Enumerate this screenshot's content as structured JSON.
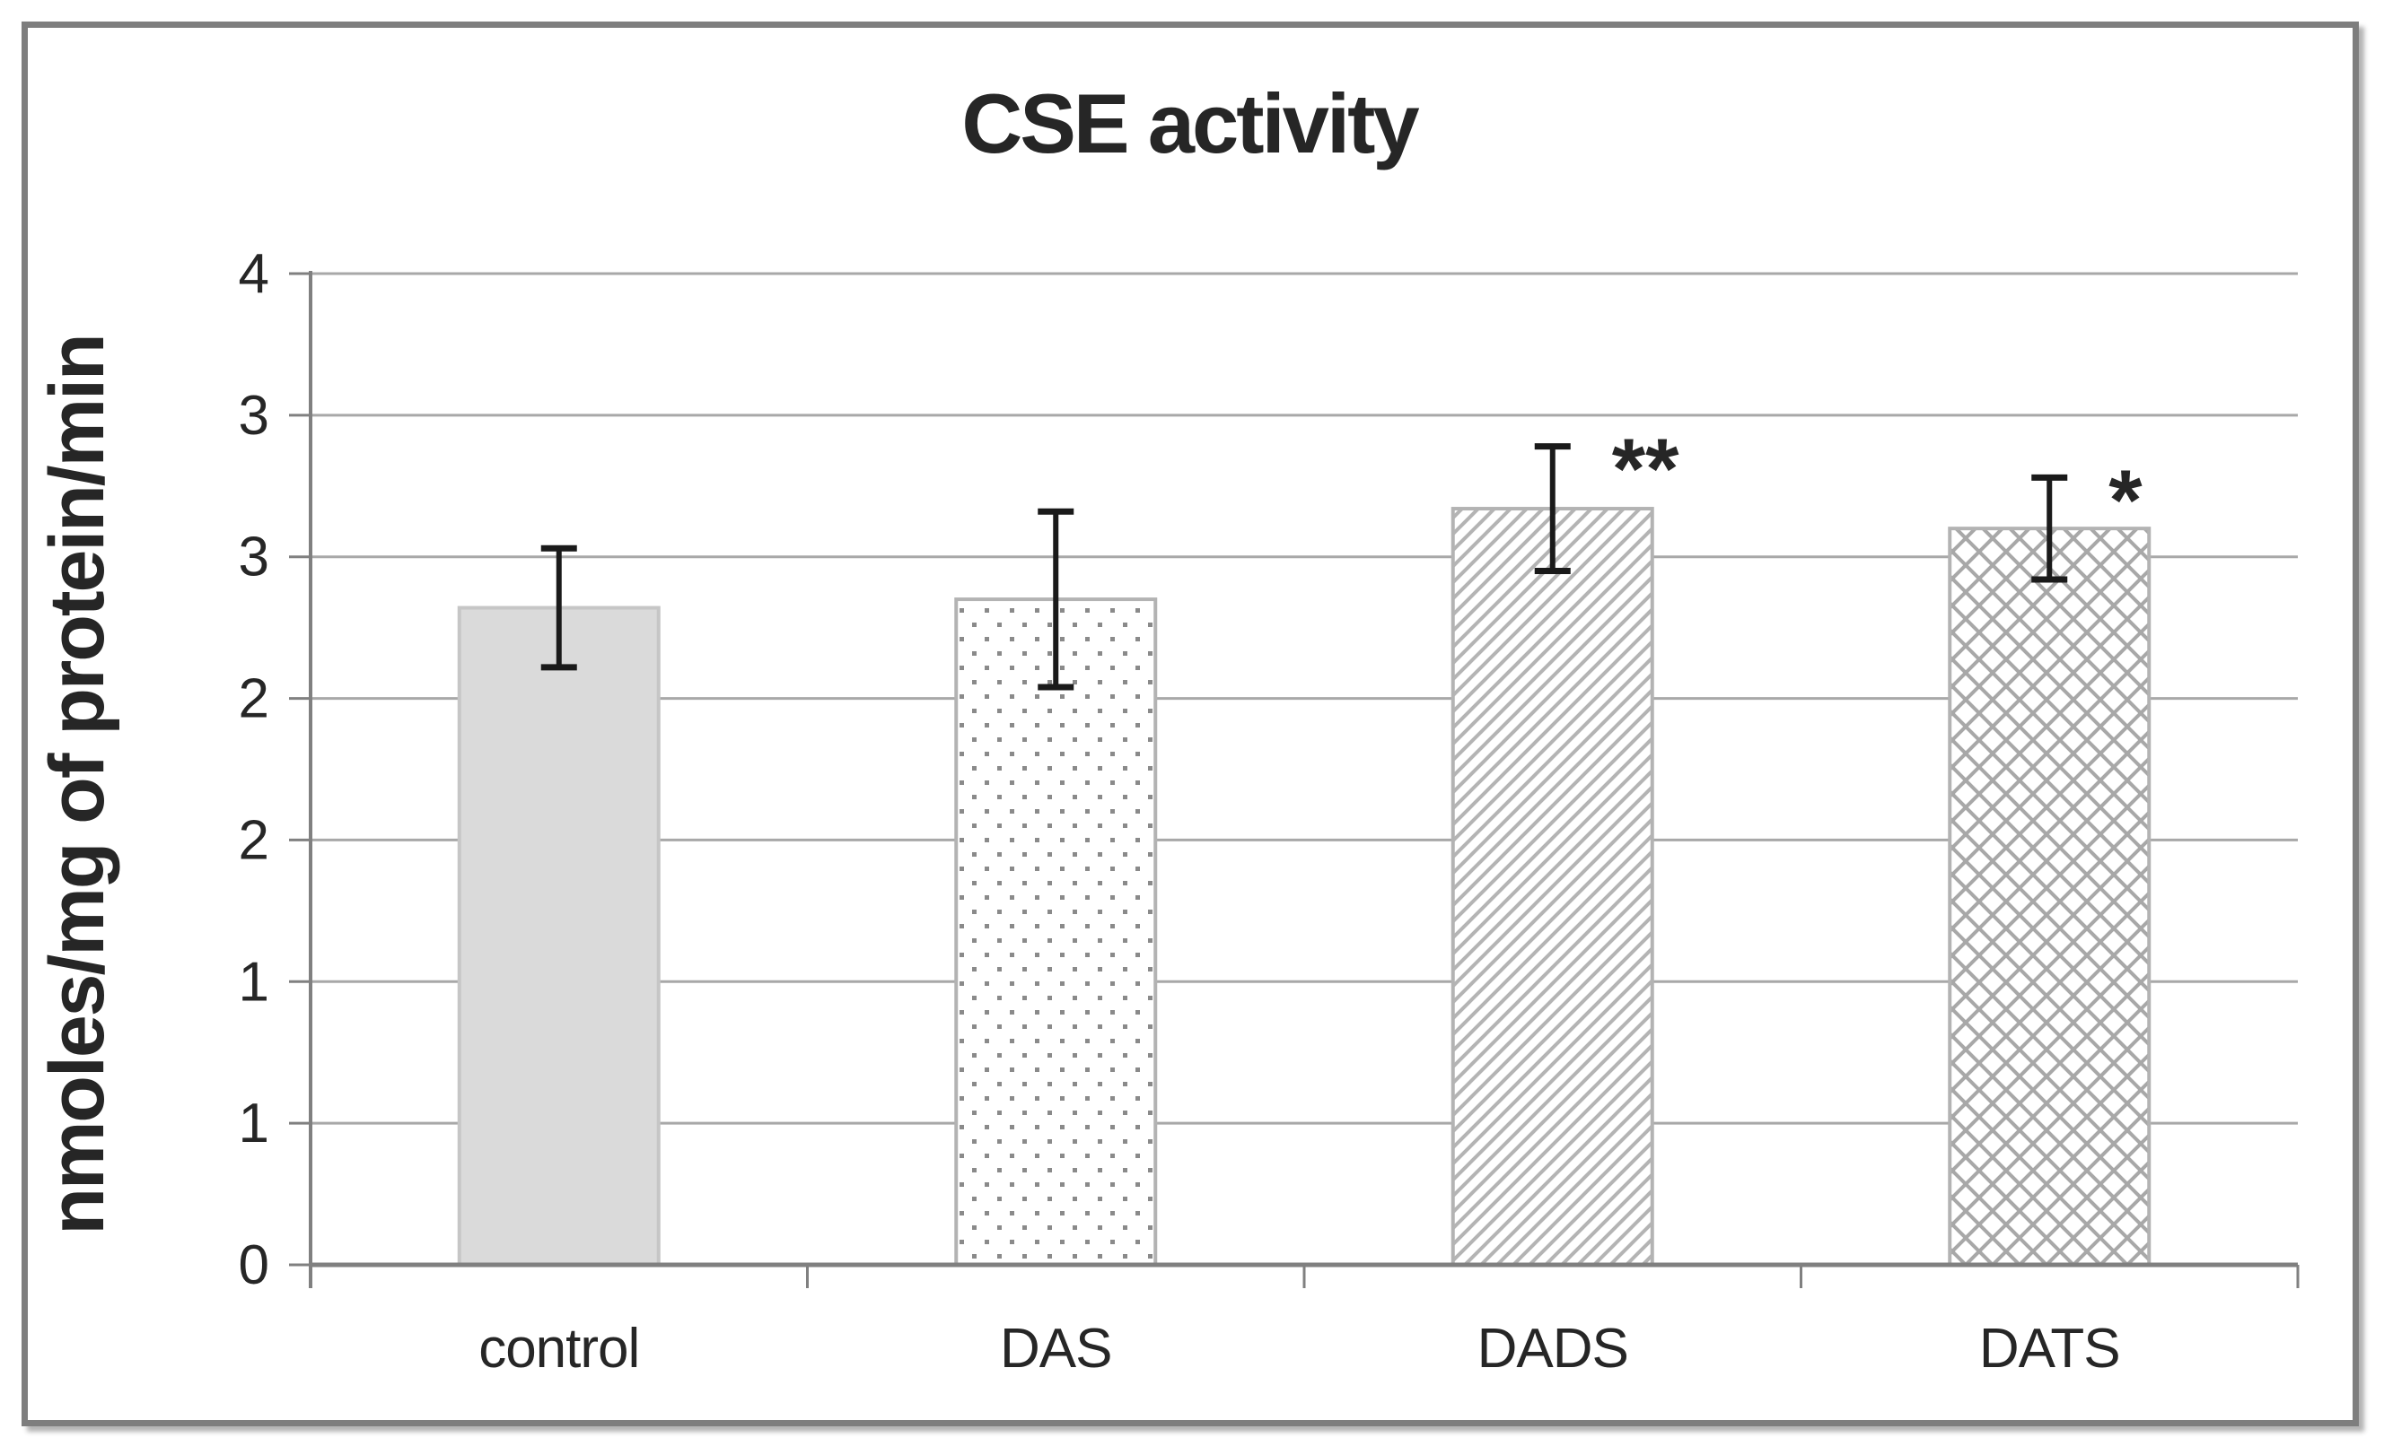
{
  "chart_data": {
    "type": "bar",
    "title": "CSE activity",
    "ylabel": "nmoles/mg of protein/min",
    "xlabel": "",
    "categories": [
      "control",
      "DAS",
      "DADS",
      "DATS"
    ],
    "values": [
      2.32,
      2.35,
      2.67,
      2.6
    ],
    "error_bars": [
      0.21,
      0.31,
      0.22,
      0.18
    ],
    "significance": [
      "",
      "",
      "**",
      "*"
    ],
    "bar_styles": [
      "solid-light-gray",
      "dotted",
      "diagonal-hatch",
      "diamond-crosshatch"
    ],
    "ylim": [
      0,
      3.5
    ],
    "y_major_unit": 0.5,
    "y_tick_labels_bottom_to_top": [
      "0",
      "1",
      "1",
      "2",
      "2",
      "3",
      "3",
      "4"
    ],
    "gridlines": "horizontal-major",
    "legend": "none",
    "colors": {
      "bar_fill_control": "#dadada",
      "bar_border": "#b3b3b3",
      "pattern_gray": "#a8a8a8",
      "gridline": "#a8a8a8",
      "axis": "#808080",
      "error_bar": "#1a1a1a",
      "text": "#262626",
      "frame_border": "#7e7e7e"
    }
  }
}
